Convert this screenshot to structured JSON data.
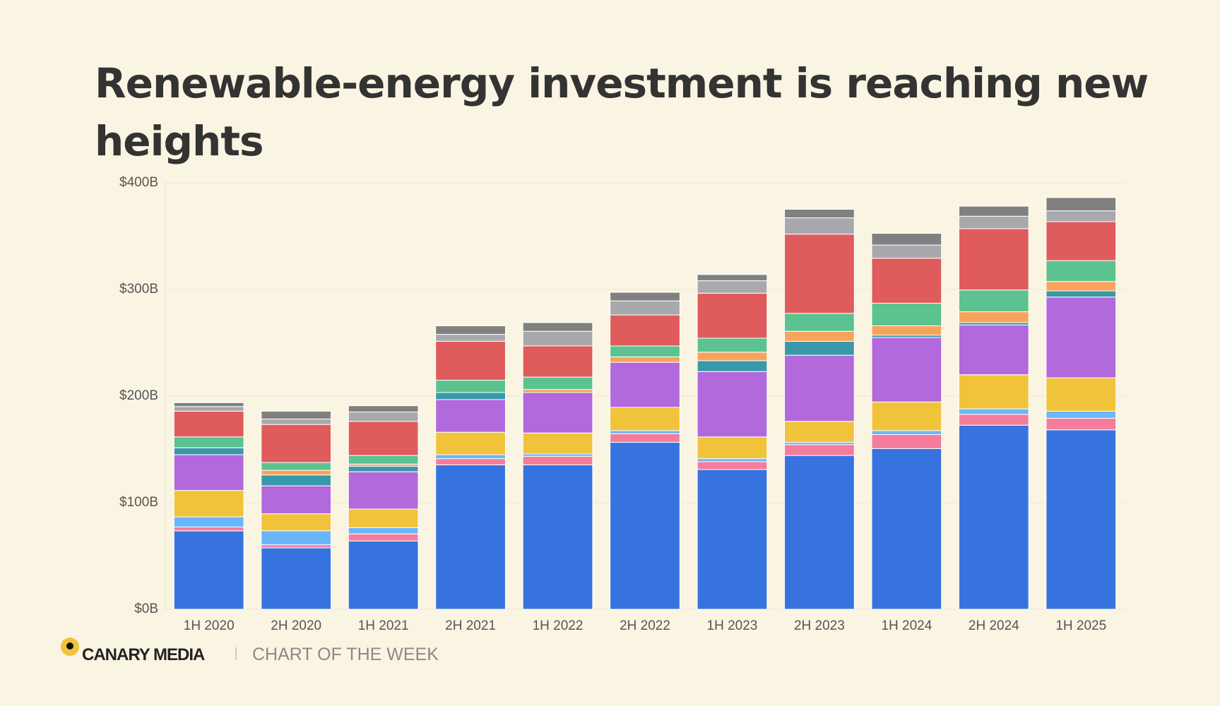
{
  "chart_data": {
    "type": "stacked_bar",
    "title": "Renewable-energy investment is reaching new heights",
    "categories": [
      "1H 2020",
      "2H 2020",
      "1H 2021",
      "2H 2021",
      "1H 2022",
      "2H 2022",
      "1H 2023",
      "2H 2023",
      "1H 2024",
      "2H 2024",
      "1H 2025"
    ],
    "series": [
      {
        "color": "#3773df",
        "values": [
          73.6,
          57.6,
          64.1,
          135.5,
          135.5,
          156.6,
          131.1,
          144.3,
          150.8,
          172.7,
          168.3
        ]
      },
      {
        "color": "#f57c9b",
        "values": [
          3.6,
          2.9,
          6.6,
          5.8,
          8,
          8.1,
          7.3,
          10.2,
          13.1,
          10.2,
          10.9
        ]
      },
      {
        "color": "#69b6fa",
        "values": [
          9.5,
          13.1,
          5.8,
          3.7,
          2.2,
          2.9,
          2.9,
          2.1,
          3.7,
          5.1,
          6.6
        ]
      },
      {
        "color": "#f1c33b",
        "values": [
          24.8,
          16,
          17.5,
          21.1,
          19.7,
          21.8,
          20.4,
          19.7,
          26.9,
          32,
          31.3
        ]
      },
      {
        "color": "#b169db",
        "values": [
          33.5,
          26.2,
          35,
          30.6,
          37.9,
          42.3,
          61.3,
          62,
          60.5,
          46.7,
          75.8
        ]
      },
      {
        "color": "#3a99a8",
        "values": [
          6.5,
          10.2,
          5.1,
          6.6,
          0,
          0,
          10.2,
          13.1,
          2.2,
          2.2,
          5.8
        ]
      },
      {
        "color": "#f8a35b",
        "values": [
          0,
          4.4,
          2.1,
          0,
          2.9,
          5.1,
          8,
          9.4,
          8.7,
          10.2,
          8.8
        ]
      },
      {
        "color": "#5bc290",
        "values": [
          10.2,
          7.3,
          8.1,
          11.6,
          11.6,
          10.2,
          13.1,
          16.8,
          21.2,
          20.4,
          19.6
        ]
      },
      {
        "color": "#df5b5c",
        "values": [
          24.1,
          35.7,
          32,
          36.5,
          29.2,
          29.1,
          42.2,
          74.3,
          42.2,
          57.5,
          36.5
        ]
      },
      {
        "color": "#a9a9ad",
        "values": [
          4.4,
          5.1,
          8.8,
          6.5,
          13.8,
          13.2,
          11.7,
          15.3,
          12.4,
          11.7,
          10.2
        ]
      },
      {
        "color": "#808080",
        "values": [
          3.6,
          7.3,
          5.8,
          8,
          8.1,
          8,
          5.8,
          8,
          10.9,
          9.4,
          12.4
        ]
      }
    ],
    "ylim": [
      0,
      400
    ],
    "yticks": [
      {
        "value": 0,
        "label": "$0B"
      },
      {
        "value": 100,
        "label": "$100B"
      },
      {
        "value": 200,
        "label": "$200B"
      },
      {
        "value": 300,
        "label": "$300B"
      },
      {
        "value": 400,
        "label": "$400B"
      }
    ],
    "grid": true
  },
  "footer": {
    "brand": "CANARY MEDIA",
    "tagline": "CHART OF THE WEEK"
  }
}
